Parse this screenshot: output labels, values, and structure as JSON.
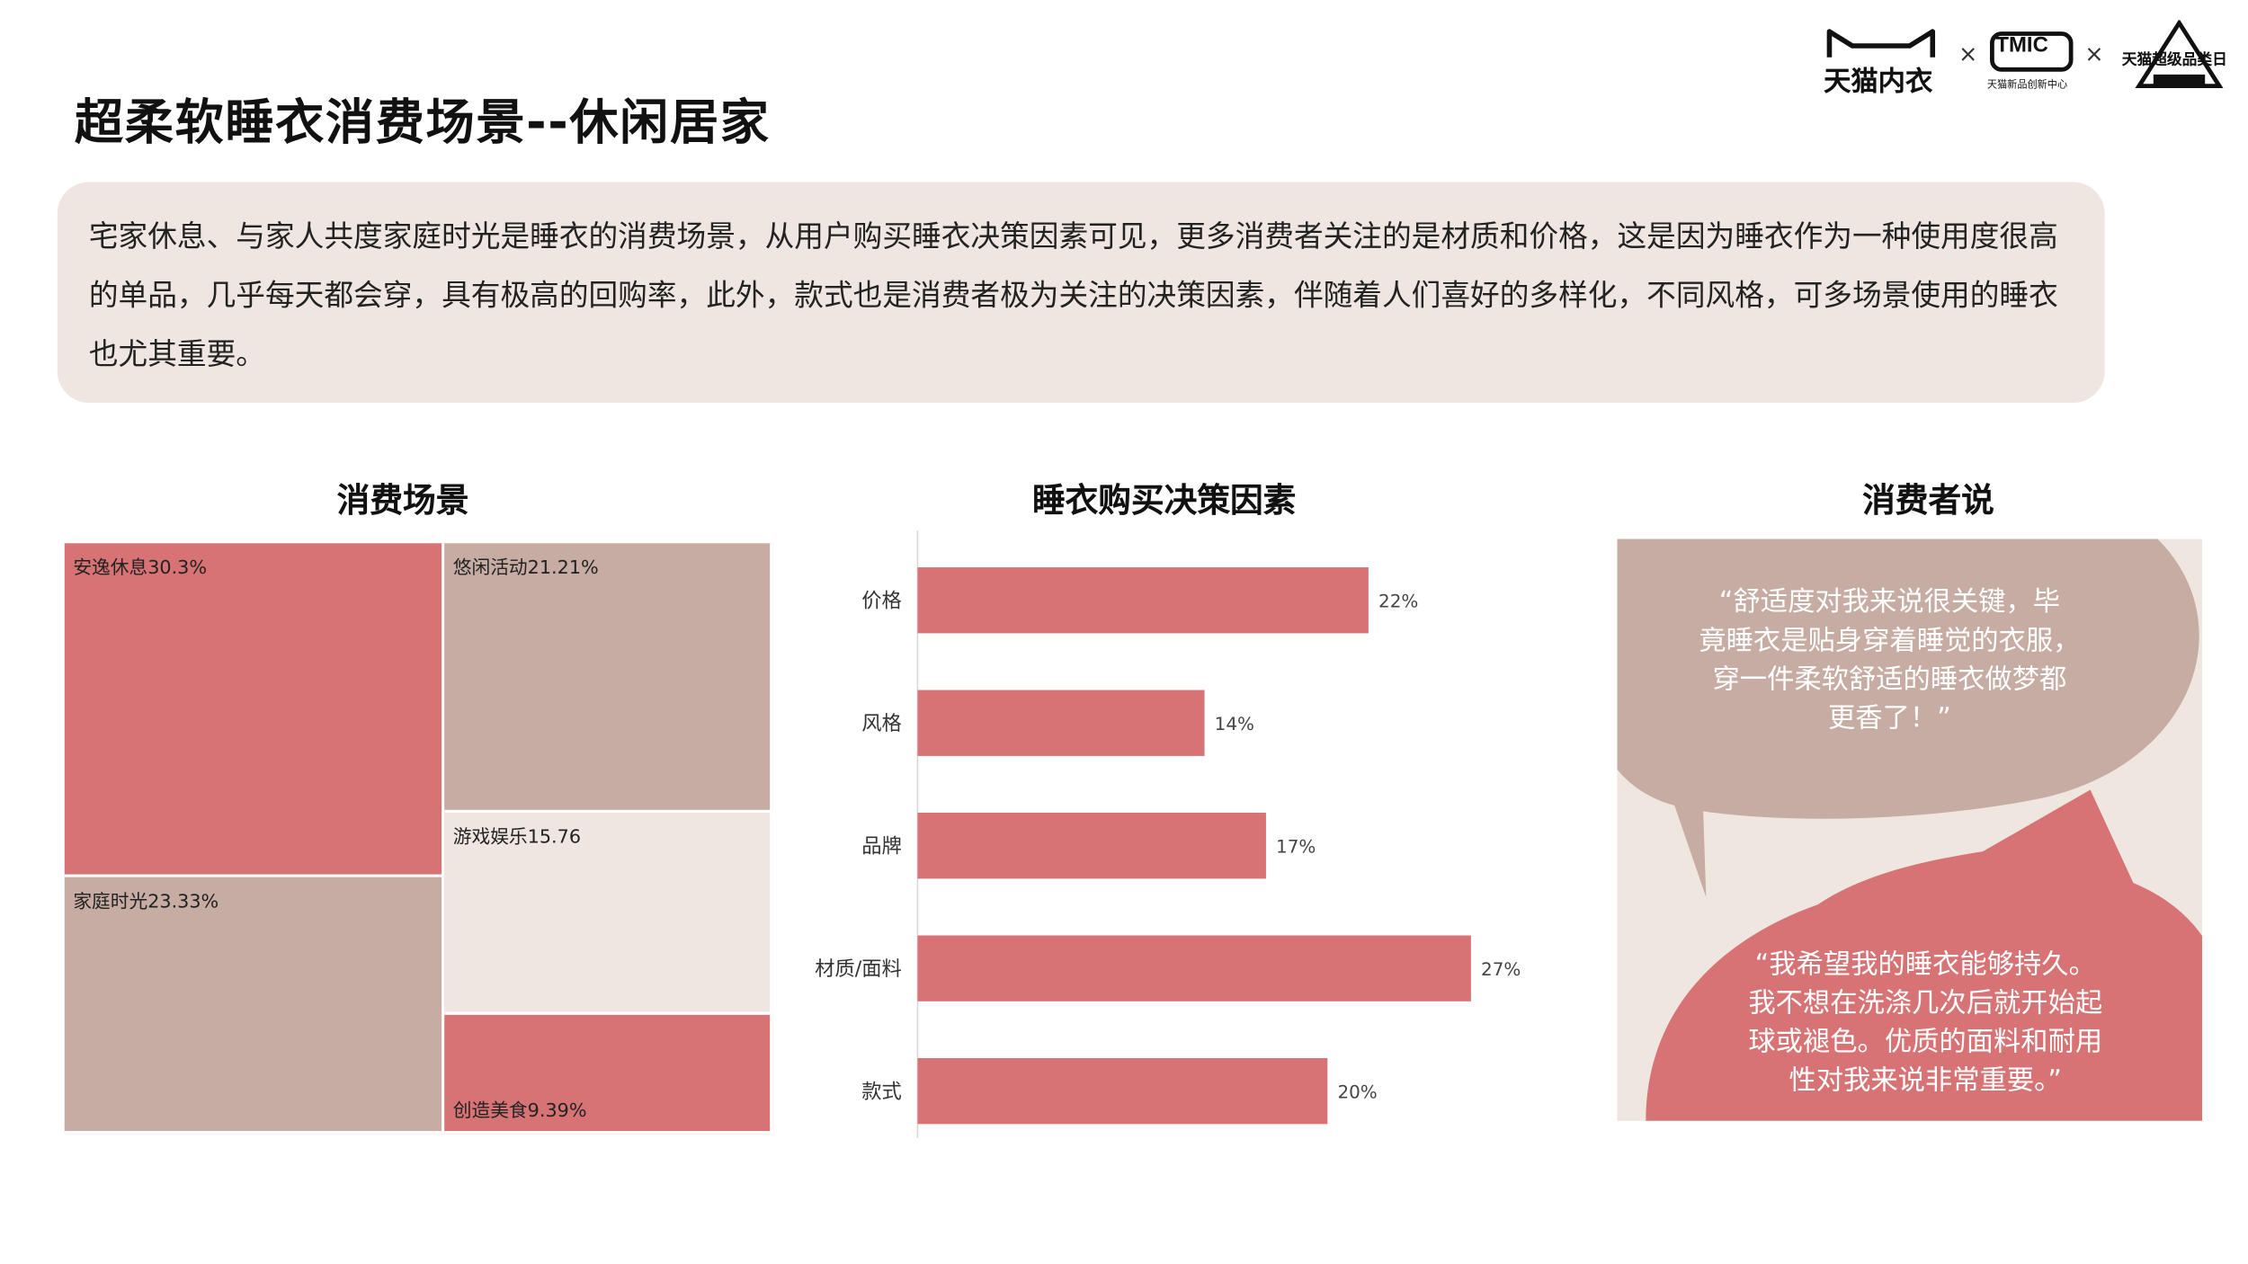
{
  "header": {
    "title": "超柔软睡衣消费场景--休闲居家",
    "logos": {
      "tmall_underwear": "天猫内衣",
      "tmic": "TMIC",
      "tmic_sub": "天猫新品创新中心",
      "super_day": "天猫超级品类日",
      "separator": "×"
    }
  },
  "intro": {
    "text": "宅家休息、与家人共度家庭时光是睡衣的消费场景，从用户购买睡衣决策因素可见，更多消费者关注的是材质和价格，这是因为睡衣作为一种使用度很高的单品，几乎每天都会穿，具有极高的回购率，此外，款式也是消费者极为关注的决策因素，伴随着人们喜好的多样化，不同风格，可多场景使用的睡衣也尤其重要。"
  },
  "sections": {
    "scenes": "消费场景",
    "factors": "睡衣购买决策因素",
    "voices": "消费者说"
  },
  "chart_data": [
    {
      "type": "treemap",
      "title": "消费场景",
      "items": [
        {
          "label": "安逸休息30.3%",
          "name": "安逸休息",
          "value": 30.3,
          "color": "#d77374"
        },
        {
          "label": "家庭时光23.33%",
          "name": "家庭时光",
          "value": 23.33,
          "color": "#c7aca3"
        },
        {
          "label": "悠闲活动21.21%",
          "name": "悠闲活动",
          "value": 21.21,
          "color": "#c7aca3"
        },
        {
          "label": "游戏娱乐15.76",
          "name": "游戏娱乐",
          "value": 15.76,
          "color": "#f0e6e1"
        },
        {
          "label": "创造美食9.39%",
          "name": "创造美食",
          "value": 9.39,
          "color": "#d77374"
        }
      ]
    },
    {
      "type": "bar",
      "orientation": "horizontal",
      "title": "睡衣购买决策因素",
      "categories": [
        "价格",
        "风格",
        "品牌",
        "材质/面料",
        "款式"
      ],
      "values": [
        22,
        14,
        17,
        27,
        20
      ],
      "value_labels": [
        "22%",
        "14%",
        "17%",
        "27%",
        "20%"
      ],
      "unit": "%",
      "xlim": [
        0,
        30
      ],
      "color": "#d77374",
      "grid": false
    }
  ],
  "quotes": [
    {
      "text": [
        "“舒适度对我来说很关键，毕",
        "竟睡衣是贴身穿着睡觉的衣服，",
        "穿一件柔软舒适的睡衣做梦都",
        "更香了！”"
      ],
      "bubble_color": "#c7aca3"
    },
    {
      "text": [
        "“我希望我的睡衣能够持久。",
        "我不想在洗涤几次后就开始起",
        "球或褪色。优质的面料和耐用",
        "性对我来说非常重要。”"
      ],
      "bubble_color": "#d77374"
    }
  ],
  "colors": {
    "accent": "#d77374",
    "muted": "#c7aca3",
    "light": "#f0e6e1",
    "panel": "#efe6e1"
  }
}
